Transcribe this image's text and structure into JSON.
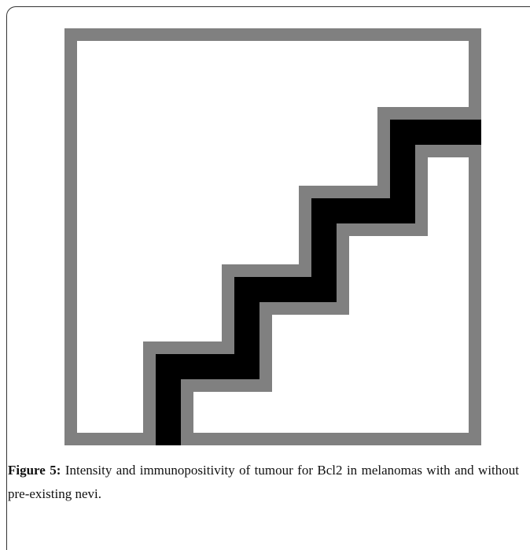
{
  "figure": {
    "label": "Figure 5:",
    "caption": "Intensity and immunopositivity of tumour for Bcl2 in melanomas with and without pre-existing nevi."
  }
}
